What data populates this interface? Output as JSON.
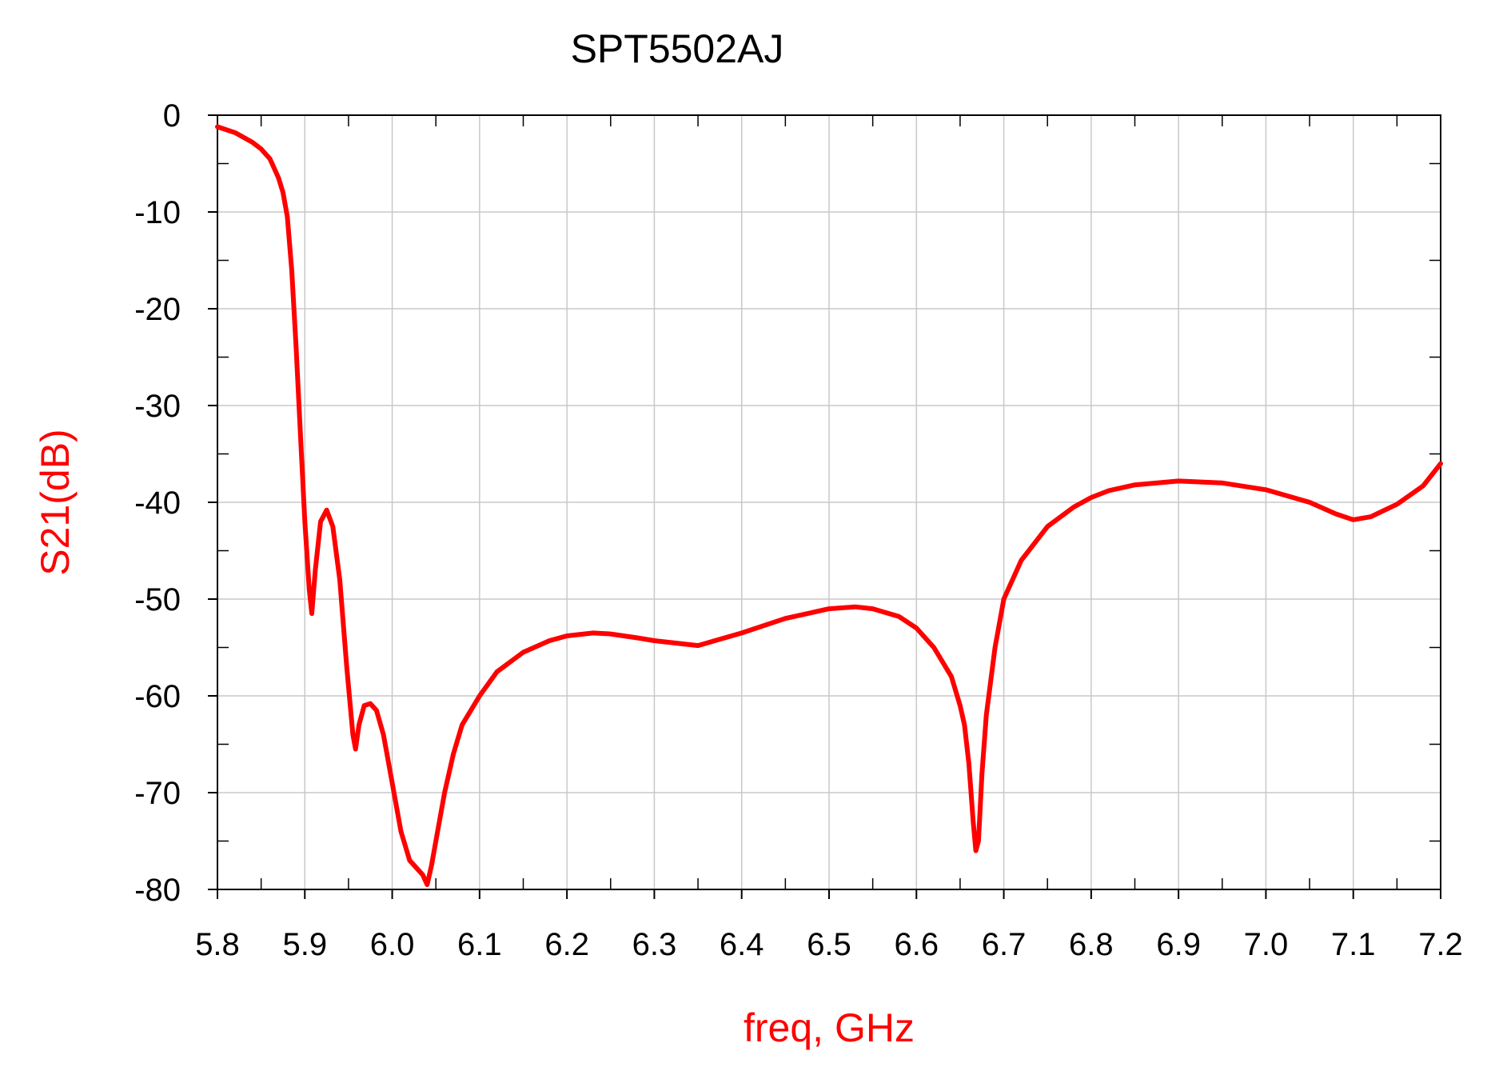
{
  "chart_data": {
    "type": "line",
    "title": "SPT5502AJ",
    "xlabel": "freq, GHz",
    "ylabel": "S21(dB)",
    "xlim": [
      5.8,
      7.2
    ],
    "ylim": [
      -80,
      0
    ],
    "xticks": [
      "5.8",
      "5.9",
      "6.0",
      "6.1",
      "6.2",
      "6.3",
      "6.4",
      "6.5",
      "6.6",
      "6.7",
      "6.8",
      "6.9",
      "7.0",
      "7.1",
      "7.2"
    ],
    "yticks": [
      "0",
      "-10",
      "-20",
      "-30",
      "-40",
      "-50",
      "-60",
      "-70",
      "-80"
    ],
    "grid": true,
    "colors": {
      "series": "#ff0000",
      "axis_title": "#ff0000",
      "grid": "#c8c8c8",
      "frame": "#000000"
    },
    "series": [
      {
        "x": [
          5.8,
          5.82,
          5.84,
          5.85,
          5.86,
          5.87,
          5.875,
          5.88,
          5.885,
          5.89,
          5.895,
          5.9,
          5.905,
          5.908,
          5.912,
          5.918,
          5.925,
          5.932,
          5.94,
          5.948,
          5.955,
          5.958,
          5.962,
          5.968,
          5.975,
          5.982,
          5.99,
          6.0,
          6.01,
          6.02,
          6.03,
          6.035,
          6.04,
          6.045,
          6.05,
          6.06,
          6.07,
          6.08,
          6.1,
          6.12,
          6.15,
          6.18,
          6.2,
          6.23,
          6.25,
          6.28,
          6.3,
          6.35,
          6.4,
          6.45,
          6.5,
          6.53,
          6.55,
          6.58,
          6.6,
          6.62,
          6.64,
          6.65,
          6.655,
          6.66,
          6.665,
          6.668,
          6.671,
          6.675,
          6.68,
          6.69,
          6.7,
          6.72,
          6.75,
          6.78,
          6.8,
          6.82,
          6.85,
          6.9,
          6.95,
          7.0,
          7.05,
          7.08,
          7.1,
          7.12,
          7.15,
          7.18,
          7.2
        ],
        "y": [
          -1.2,
          -1.8,
          -2.8,
          -3.5,
          -4.5,
          -6.5,
          -8.0,
          -10.5,
          -16,
          -24,
          -33,
          -42,
          -49,
          -51.5,
          -47,
          -42,
          -40.8,
          -42.5,
          -48,
          -57,
          -64,
          -65.5,
          -63,
          -61,
          -60.8,
          -61.5,
          -64,
          -69,
          -74,
          -77,
          -78,
          -78.5,
          -79.5,
          -77.5,
          -75,
          -70,
          -66,
          -63,
          -60,
          -57.5,
          -55.5,
          -54.3,
          -53.8,
          -53.5,
          -53.6,
          -54,
          -54.3,
          -54.8,
          -53.5,
          -52,
          -51,
          -50.8,
          -51,
          -51.8,
          -53,
          -55,
          -58,
          -61,
          -63,
          -67,
          -73,
          -76,
          -75,
          -68,
          -62,
          -55,
          -50,
          -46,
          -42.5,
          -40.5,
          -39.5,
          -38.8,
          -38.2,
          -37.8,
          -38,
          -38.7,
          -40,
          -41.2,
          -41.8,
          -41.5,
          -40.2,
          -38.3,
          -36
        ]
      }
    ]
  }
}
